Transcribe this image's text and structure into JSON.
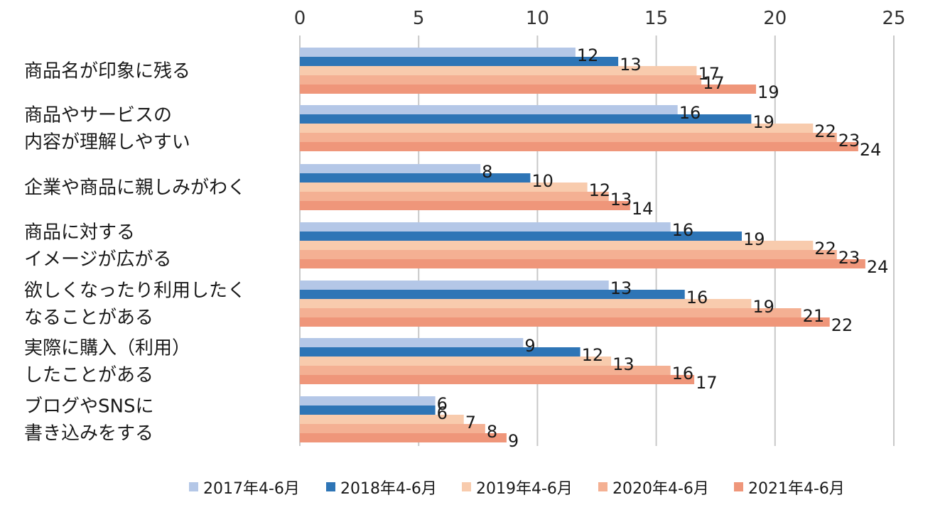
{
  "chart_data": {
    "type": "bar",
    "orientation": "horizontal",
    "categories": [
      [
        "商品名が印象に残る"
      ],
      [
        "商品やサービスの",
        "内容が理解しやすい"
      ],
      [
        "企業や商品に親しみがわく"
      ],
      [
        "商品に対する",
        "イメージが広がる"
      ],
      [
        "欲しくなったり利用したく",
        "なることがある"
      ],
      [
        "実際に購入（利用）",
        "したことがある"
      ],
      [
        "ブログやSNSに",
        "書き込みをする"
      ]
    ],
    "series": [
      {
        "name": "2017年4-6月",
        "color": "#b4c7e7",
        "values": [
          11.6,
          15.9,
          7.6,
          15.6,
          13.0,
          9.4,
          5.7
        ],
        "labels": [
          "12",
          "16",
          "8",
          "16",
          "13",
          "9",
          "6"
        ]
      },
      {
        "name": "2018年4-6月",
        "color": "#2e75b6",
        "values": [
          13.4,
          19.0,
          9.7,
          18.6,
          16.2,
          11.8,
          5.7
        ],
        "labels": [
          "13",
          "19",
          "10",
          "19",
          "16",
          "12",
          "6"
        ]
      },
      {
        "name": "2019年4-6月",
        "color": "#f8cbad",
        "values": [
          16.7,
          21.6,
          12.1,
          21.6,
          19.0,
          13.1,
          6.9
        ],
        "labels": [
          "17",
          "22",
          "12",
          "22",
          "19",
          "13",
          "7"
        ]
      },
      {
        "name": "2020年4-6月",
        "color": "#f4b093",
        "values": [
          16.9,
          22.6,
          13.0,
          22.6,
          21.1,
          15.6,
          7.8
        ],
        "labels": [
          "17",
          "23",
          "13",
          "23",
          "21",
          "16",
          "8"
        ]
      },
      {
        "name": "2021年4-6月",
        "color": "#ef967a",
        "values": [
          19.2,
          23.5,
          13.9,
          23.8,
          22.3,
          16.6,
          8.7
        ],
        "labels": [
          "19",
          "24",
          "14",
          "24",
          "22",
          "17",
          "9"
        ]
      }
    ],
    "xlim": [
      0,
      25
    ],
    "xticks": [
      "0",
      "5",
      "10",
      "15",
      "20",
      "25"
    ],
    "grid": true,
    "legend_position": "bottom"
  }
}
